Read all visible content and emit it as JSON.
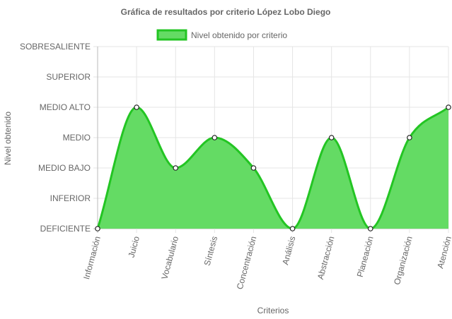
{
  "chart_data": {
    "type": "area",
    "title": "Gráfica de resultados por criterio López Lobo Diego",
    "xlabel": "Criterios",
    "ylabel": "Nivel obtenido",
    "levels": [
      "DEFICIENTE",
      "INFERIOR",
      "MEDIO BAJO",
      "MEDIO",
      "MEDIO ALTO",
      "SUPERIOR",
      "SOBRESALIENTE"
    ],
    "categories": [
      "Información",
      "Juicio",
      "Vocabulario",
      "Síntesis",
      "Concentración",
      "Análisis",
      "Abstracción",
      "Planeación",
      "Organización",
      "Atención"
    ],
    "series": [
      {
        "name": "Nivel obtenido por criterio",
        "values": [
          0,
          4,
          2,
          3,
          2,
          0,
          3,
          0,
          3,
          4
        ],
        "labels": [
          "DEFICIENTE",
          "MEDIO ALTO",
          "MEDIO BAJO",
          "MEDIO",
          "MEDIO BAJO",
          "DEFICIENTE",
          "MEDIO",
          "DEFICIENTE",
          "MEDIO",
          "MEDIO ALTO"
        ]
      }
    ],
    "ylim": [
      0,
      6
    ],
    "grid": true,
    "legend": "top-center",
    "colors": {
      "fill": "#64db64",
      "line": "#23c523",
      "grid": "#e5e5e5",
      "axis": "#bbbbbb",
      "text": "#666666"
    }
  }
}
